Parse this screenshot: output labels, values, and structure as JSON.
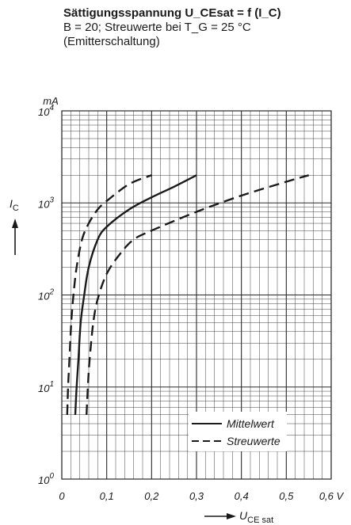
{
  "title": {
    "line1": "Sättigungsspannung U_CEsat = f (I_C)",
    "line2": "B = 20; Streuwerte bei T_G = 25 °C",
    "line3": "(Emitterschaltung)"
  },
  "chart_data": {
    "type": "line",
    "title": "Sättigungsspannung U_CEsat = f (I_C)",
    "subtitle": "B = 20; Streuwerte bei T_G = 25 °C (Emitterschaltung)",
    "xlabel": "U_CE sat",
    "x_unit": "V",
    "ylabel": "I_C",
    "y_unit": "mA",
    "xlim": [
      0,
      0.6
    ],
    "ylim": [
      1,
      10000
    ],
    "yscale": "log",
    "grid": true,
    "x_ticks": [
      "0",
      "0,1",
      "0,2",
      "0,3",
      "0,4",
      "0,5",
      "0,6 V"
    ],
    "y_ticks": [
      "10^0",
      "10^1",
      "10^2",
      "10^3",
      "10^4"
    ],
    "legend_position": "bottom-right",
    "legend": [
      "Mittelwert",
      "Streuwerte"
    ],
    "series": [
      {
        "name": "Mittelwert",
        "style": "solid",
        "x": [
          0.03,
          0.033,
          0.037,
          0.042,
          0.05,
          0.06,
          0.08,
          0.1,
          0.15,
          0.2,
          0.25,
          0.3
        ],
        "y": [
          5,
          10,
          20,
          50,
          100,
          200,
          400,
          550,
          850,
          1150,
          1500,
          2000
        ]
      },
      {
        "name": "Streuwerte",
        "style": "dashed",
        "x": [
          0.012,
          0.014,
          0.017,
          0.021,
          0.026,
          0.033,
          0.045,
          0.06,
          0.08,
          0.1,
          0.15,
          0.2
        ],
        "y": [
          5,
          10,
          20,
          50,
          100,
          200,
          400,
          600,
          850,
          1050,
          1600,
          2000
        ]
      },
      {
        "name": "Streuwerte",
        "style": "dashed",
        "x": [
          0.055,
          0.058,
          0.062,
          0.07,
          0.08,
          0.1,
          0.13,
          0.16,
          0.2,
          0.3,
          0.4,
          0.5,
          0.55
        ],
        "y": [
          5,
          10,
          20,
          50,
          90,
          170,
          280,
          400,
          500,
          800,
          1200,
          1700,
          2000
        ]
      }
    ]
  },
  "colors": {
    "curve": "#1a1a1a",
    "grid": "#2a2a2a"
  }
}
